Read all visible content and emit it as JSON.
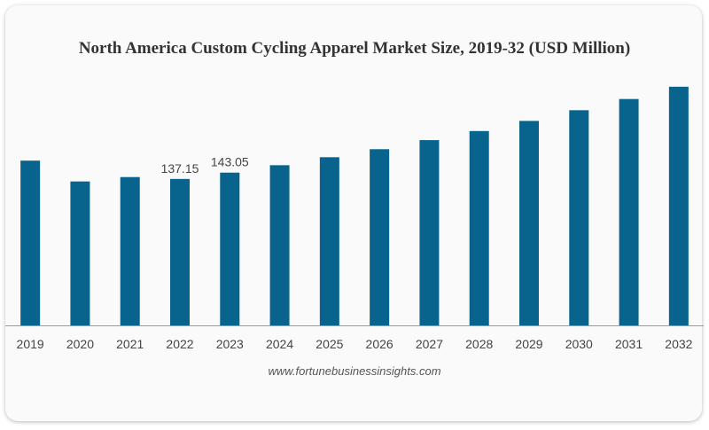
{
  "chart_data": {
    "type": "bar",
    "title": "North America Custom Cycling Apparel Market Size, 2019-32 (USD Million)",
    "categories": [
      "2019",
      "2020",
      "2021",
      "2022",
      "2023",
      "2024",
      "2025",
      "2026",
      "2027",
      "2028",
      "2029",
      "2030",
      "2031",
      "2032"
    ],
    "values": [
      154.3,
      134.8,
      138.9,
      137.15,
      143.05,
      150.0,
      157.5,
      165.0,
      173.5,
      182.0,
      191.5,
      201.5,
      212.0,
      223.5
    ],
    "data_labels": [
      {
        "category": "2022",
        "text": "137.15"
      },
      {
        "category": "2023",
        "text": "143.05"
      }
    ],
    "xlabel": "",
    "ylabel": "",
    "ylim": [
      0,
      230
    ],
    "grid": false,
    "legend": "none",
    "bar_color": "#08648c"
  },
  "source": "www.fortunebusinessinsights.com"
}
